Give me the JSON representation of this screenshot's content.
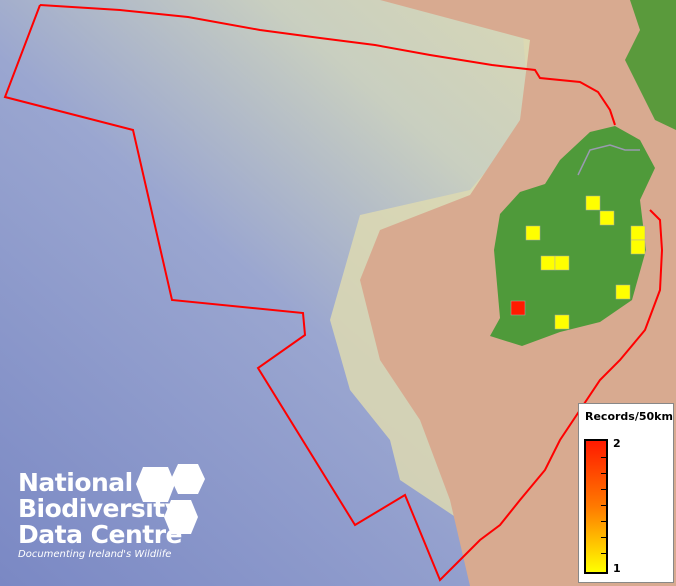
{
  "legend": {
    "title": "Records/50km",
    "max_label": "2",
    "min_label": "1",
    "color_low": "#ffff00",
    "color_high": "#ff1a00"
  },
  "logo": {
    "line1": "National",
    "line2": "Biodiversity",
    "line3": "Data Centre",
    "tagline": "Documenting Ireland's Wildlife"
  },
  "records": [
    1,
    1,
    1,
    1,
    1,
    1,
    1,
    1,
    2,
    1
  ],
  "colors": {
    "boundary": "#ff0000",
    "land": "#4f9a3a",
    "ocean": "#8090c8"
  }
}
